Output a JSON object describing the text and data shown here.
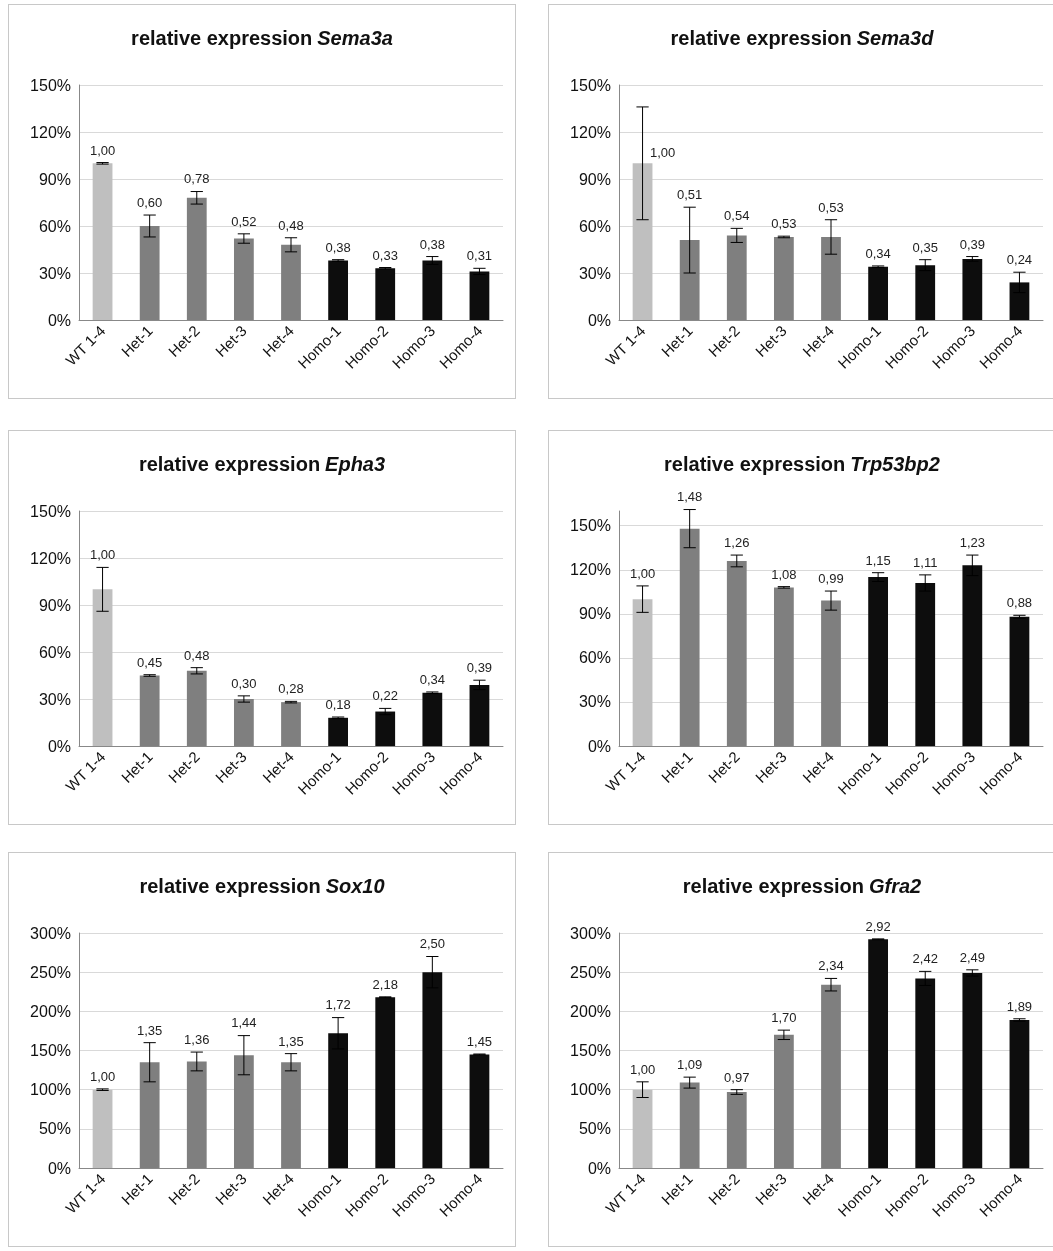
{
  "chart_data": [
    {
      "type": "bar",
      "title": "relative expression Sema3a",
      "categories": [
        "WT 1-4",
        "Het-1",
        "Het-2",
        "Het-3",
        "Het-4",
        "Homo-1",
        "Homo-2",
        "Homo-3",
        "Homo-4"
      ],
      "values": [
        1.0,
        0.6,
        0.78,
        0.52,
        0.48,
        0.38,
        0.33,
        0.38,
        0.31
      ],
      "colors": [
        "#bfbfbf",
        "#7f7f7f",
        "#7f7f7f",
        "#7f7f7f",
        "#7f7f7f",
        "#0d0d0d",
        "#0d0d0d",
        "#0d0d0d",
        "#0d0d0d"
      ],
      "errors": [
        0.005,
        0.07,
        0.04,
        0.03,
        0.045,
        0.005,
        0.005,
        0.025,
        0.02
      ],
      "value_labels": [
        "1,00",
        "0,60",
        "0,78",
        "0,52",
        "0,48",
        "0,38",
        "0,33",
        "0,38",
        "0,31"
      ],
      "ylim": [
        0,
        1.5
      ],
      "yticks": [
        {
          "value": 0,
          "label": "0%"
        },
        {
          "value": 0.3,
          "label": "30%"
        },
        {
          "value": 0.6,
          "label": "60%"
        },
        {
          "value": 0.9,
          "label": "90%"
        },
        {
          "value": 1.2,
          "label": "120%"
        },
        {
          "value": 1.5,
          "label": "150%"
        }
      ],
      "grid": "y"
    },
    {
      "type": "bar",
      "title": "relative expression Sema3d",
      "categories": [
        "WT 1-4",
        "Het-1",
        "Het-2",
        "Het-3",
        "Het-4",
        "Homo-1",
        "Homo-2",
        "Homo-3",
        "Homo-4"
      ],
      "values": [
        1.0,
        0.51,
        0.54,
        0.53,
        0.53,
        0.34,
        0.35,
        0.39,
        0.24
      ],
      "colors": [
        "#bfbfbf",
        "#7f7f7f",
        "#7f7f7f",
        "#7f7f7f",
        "#7f7f7f",
        "#0d0d0d",
        "#0d0d0d",
        "#0d0d0d",
        "#0d0d0d"
      ],
      "errors": [
        0.36,
        0.21,
        0.045,
        0.005,
        0.11,
        0.005,
        0.035,
        0.015,
        0.065
      ],
      "value_labels": [
        "1,00",
        "0,51",
        "0,54",
        "0,53",
        "0,53",
        "0,34",
        "0,35",
        "0,39",
        "0,24"
      ],
      "ylim": [
        0,
        1.5
      ],
      "yticks": [
        {
          "value": 0,
          "label": "0%"
        },
        {
          "value": 0.3,
          "label": "30%"
        },
        {
          "value": 0.6,
          "label": "60%"
        },
        {
          "value": 0.9,
          "label": "90%"
        },
        {
          "value": 1.2,
          "label": "120%"
        },
        {
          "value": 1.5,
          "label": "150%"
        }
      ],
      "grid": "y"
    },
    {
      "type": "bar",
      "title": "relative expression Epha3",
      "categories": [
        "WT 1-4",
        "Het-1",
        "Het-2",
        "Het-3",
        "Het-4",
        "Homo-1",
        "Homo-2",
        "Homo-3",
        "Homo-4"
      ],
      "values": [
        1.0,
        0.45,
        0.48,
        0.3,
        0.28,
        0.18,
        0.22,
        0.34,
        0.39
      ],
      "colors": [
        "#bfbfbf",
        "#7f7f7f",
        "#7f7f7f",
        "#7f7f7f",
        "#7f7f7f",
        "#0d0d0d",
        "#0d0d0d",
        "#0d0d0d",
        "#0d0d0d"
      ],
      "errors": [
        0.14,
        0.005,
        0.02,
        0.02,
        0.005,
        0.005,
        0.02,
        0.005,
        0.03
      ],
      "value_labels": [
        "1,00",
        "0,45",
        "0,48",
        "0,30",
        "0,28",
        "0,18",
        "0,22",
        "0,34",
        "0,39"
      ],
      "ylim": [
        0,
        1.5
      ],
      "yticks": [
        {
          "value": 0,
          "label": "0%"
        },
        {
          "value": 0.3,
          "label": "30%"
        },
        {
          "value": 0.6,
          "label": "60%"
        },
        {
          "value": 0.9,
          "label": "90%"
        },
        {
          "value": 1.2,
          "label": "120%"
        },
        {
          "value": 1.5,
          "label": "150%"
        }
      ],
      "grid": "y"
    },
    {
      "type": "bar",
      "title": "relative expression Trp53bp2",
      "categories": [
        "WT 1-4",
        "Het-1",
        "Het-2",
        "Het-3",
        "Het-4",
        "Homo-1",
        "Homo-2",
        "Homo-3",
        "Homo-4"
      ],
      "values": [
        1.0,
        1.48,
        1.26,
        1.08,
        0.99,
        1.15,
        1.11,
        1.23,
        0.88
      ],
      "colors": [
        "#bfbfbf",
        "#7f7f7f",
        "#7f7f7f",
        "#7f7f7f",
        "#7f7f7f",
        "#0d0d0d",
        "#0d0d0d",
        "#0d0d0d",
        "#0d0d0d"
      ],
      "errors": [
        0.09,
        0.13,
        0.04,
        0.005,
        0.065,
        0.03,
        0.055,
        0.07,
        0.01
      ],
      "value_labels": [
        "1,00",
        "1,48",
        "1,26",
        "1,08",
        "0,99",
        "1,15",
        "1,11",
        "1,23",
        "0,88"
      ],
      "ylim": [
        0,
        1.6
      ],
      "yticks": [
        {
          "value": 0,
          "label": "0%"
        },
        {
          "value": 0.3,
          "label": "30%"
        },
        {
          "value": 0.6,
          "label": "60%"
        },
        {
          "value": 0.9,
          "label": "90%"
        },
        {
          "value": 1.2,
          "label": "120%"
        },
        {
          "value": 1.5,
          "label": "150%"
        }
      ],
      "grid": "y"
    },
    {
      "type": "bar",
      "title": "relative expression Sox10",
      "categories": [
        "WT 1-4",
        "Het-1",
        "Het-2",
        "Het-3",
        "Het-4",
        "Homo-1",
        "Homo-2",
        "Homo-3",
        "Homo-4"
      ],
      "values": [
        1.0,
        1.35,
        1.36,
        1.44,
        1.35,
        1.72,
        2.18,
        2.5,
        1.45
      ],
      "colors": [
        "#bfbfbf",
        "#7f7f7f",
        "#7f7f7f",
        "#7f7f7f",
        "#7f7f7f",
        "#0d0d0d",
        "#0d0d0d",
        "#0d0d0d",
        "#0d0d0d"
      ],
      "errors": [
        0.01,
        0.25,
        0.12,
        0.25,
        0.11,
        0.2,
        0.005,
        0.2,
        0.005
      ],
      "value_labels": [
        "1,00",
        "1,35",
        "1,36",
        "1,44",
        "1,35",
        "1,72",
        "2,18",
        "2,50",
        "1,45"
      ],
      "ylim": [
        0,
        3
      ],
      "yticks": [
        {
          "value": 0,
          "label": "0%"
        },
        {
          "value": 0.5,
          "label": "50%"
        },
        {
          "value": 1,
          "label": "100%"
        },
        {
          "value": 1.5,
          "label": "150%"
        },
        {
          "value": 2,
          "label": "200%"
        },
        {
          "value": 2.5,
          "label": "250%"
        },
        {
          "value": 3,
          "label": "300%"
        }
      ],
      "grid": "y"
    },
    {
      "type": "bar",
      "title": "relative expression Gfra2",
      "categories": [
        "WT 1-4",
        "Het-1",
        "Het-2",
        "Het-3",
        "Het-4",
        "Homo-1",
        "Homo-2",
        "Homo-3",
        "Homo-4"
      ],
      "values": [
        1.0,
        1.09,
        0.97,
        1.7,
        2.34,
        2.92,
        2.42,
        2.49,
        1.89
      ],
      "colors": [
        "#bfbfbf",
        "#7f7f7f",
        "#7f7f7f",
        "#7f7f7f",
        "#7f7f7f",
        "#0d0d0d",
        "#0d0d0d",
        "#0d0d0d",
        "#0d0d0d"
      ],
      "errors": [
        0.1,
        0.07,
        0.03,
        0.06,
        0.08,
        0.005,
        0.09,
        0.04,
        0.015
      ],
      "value_labels": [
        "1,00",
        "1,09",
        "0,97",
        "1,70",
        "2,34",
        "2,92",
        "2,42",
        "2,49",
        "1,89"
      ],
      "ylim": [
        0,
        3
      ],
      "yticks": [
        {
          "value": 0,
          "label": "0%"
        },
        {
          "value": 0.5,
          "label": "50%"
        },
        {
          "value": 1,
          "label": "100%"
        },
        {
          "value": 1.5,
          "label": "150%"
        },
        {
          "value": 2,
          "label": "200%"
        },
        {
          "value": 2.5,
          "label": "250%"
        },
        {
          "value": 3,
          "label": "300%"
        }
      ],
      "grid": "y"
    }
  ]
}
